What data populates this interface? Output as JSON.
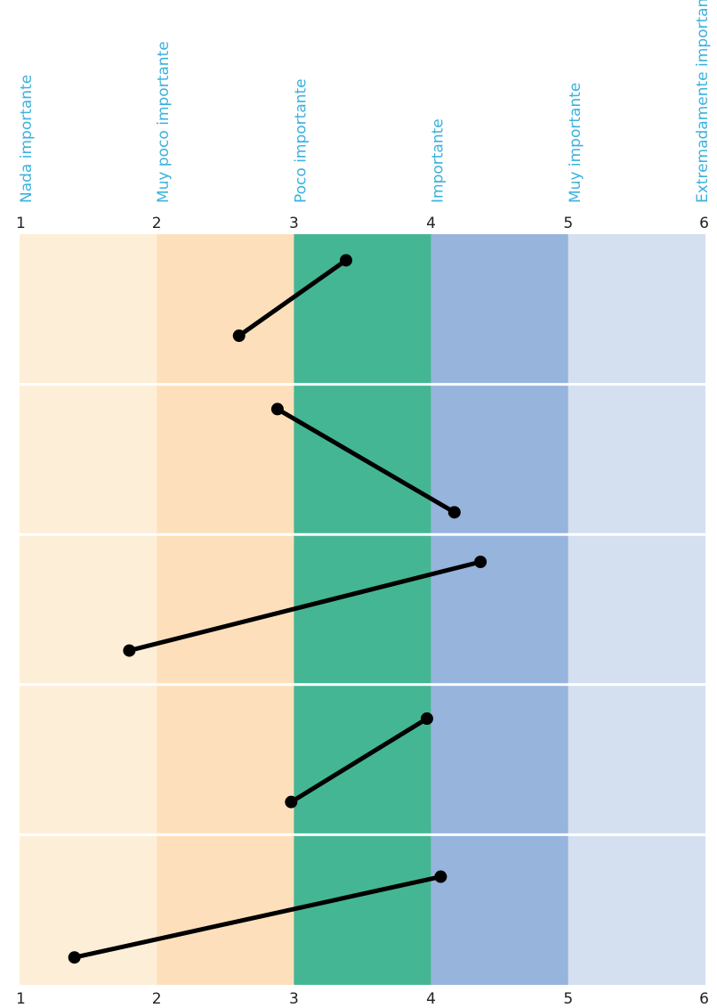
{
  "chart_data": {
    "type": "line",
    "title": "",
    "xlabel": "",
    "ylabel": "",
    "xlim": [
      1,
      6
    ],
    "x_ticks": [
      1,
      2,
      3,
      4,
      5,
      6
    ],
    "scale_labels": [
      "Nada importante",
      "Muy poco importante",
      "Poco importante",
      "Importante",
      "Muy importante",
      "Extremadamente importante"
    ],
    "band_colors": [
      "#fdeed8",
      "#fde0bb",
      "#44b693",
      "#96b4dc",
      "#d4e0f0"
    ],
    "line_color": "#000000",
    "label_color": "#3bb1dd",
    "rows": [
      {
        "points": [
          {
            "x": 2.6,
            "y": 0.3
          },
          {
            "x": 3.38,
            "y": 0.87
          }
        ]
      },
      {
        "points": [
          {
            "x": 2.88,
            "y": 0.88
          },
          {
            "x": 4.17,
            "y": 0.1
          }
        ]
      },
      {
        "points": [
          {
            "x": 1.8,
            "y": 0.19
          },
          {
            "x": 4.36,
            "y": 0.86
          }
        ]
      },
      {
        "points": [
          {
            "x": 2.98,
            "y": 0.18
          },
          {
            "x": 3.97,
            "y": 0.81
          }
        ]
      },
      {
        "points": [
          {
            "x": 1.4,
            "y": 0.14
          },
          {
            "x": 4.07,
            "y": 0.75
          }
        ]
      }
    ]
  }
}
